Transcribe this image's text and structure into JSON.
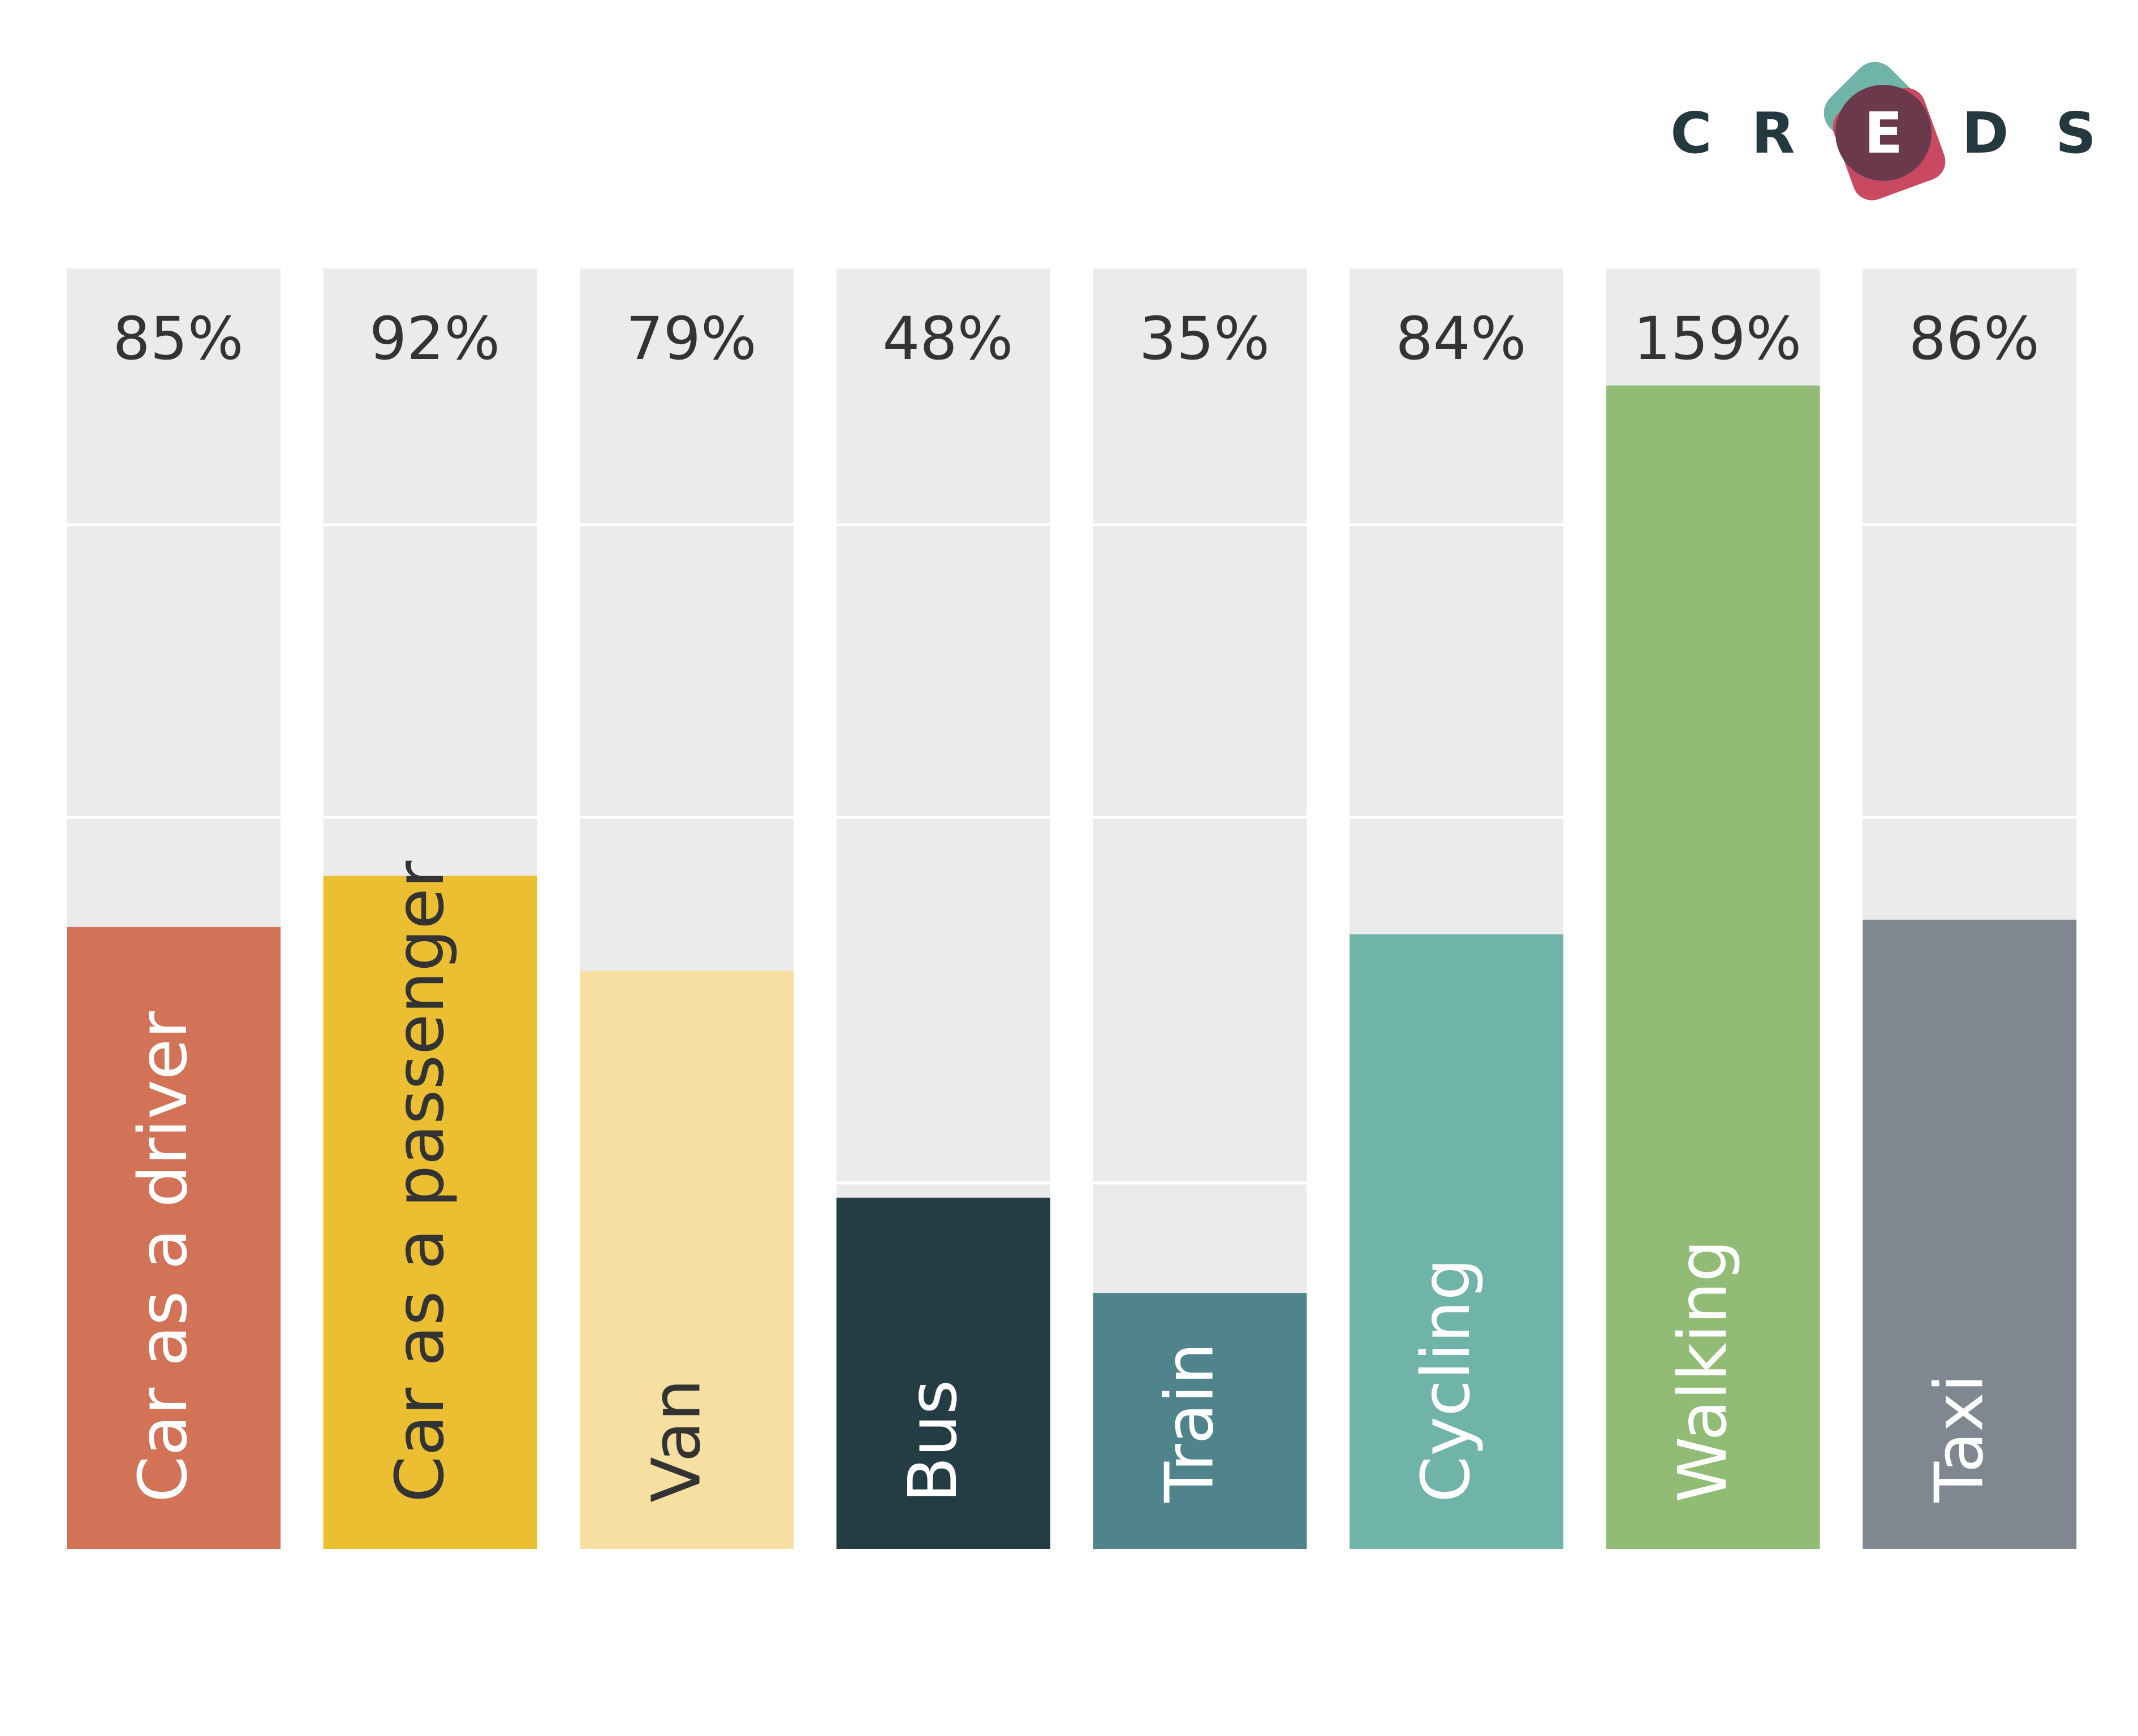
{
  "logo": {
    "letters": [
      "C",
      "R",
      "E",
      "D",
      "S"
    ],
    "colors": {
      "text": "#24383f",
      "teal": "#6fb3a9",
      "rose": "#c94a60",
      "overlap": "#6a3a4c"
    }
  },
  "chart_data": {
    "type": "bar",
    "title": "",
    "xlabel": "",
    "ylabel": "",
    "ylim": [
      0,
      175
    ],
    "grid": true,
    "legend": "none",
    "categories": [
      "Car as a driver",
      "Car as a passenger",
      "Van",
      "Bus",
      "Train",
      "Cycling",
      "Walking",
      "Taxi"
    ],
    "values": [
      85,
      92,
      79,
      48,
      35,
      84,
      159,
      86
    ],
    "value_labels": [
      "85%",
      "92%",
      "79%",
      "48%",
      "35%",
      "84%",
      "159%",
      "86%"
    ],
    "colors": [
      "#d27256",
      "#ecbf33",
      "#f6dfa1",
      "#243c43",
      "#4f848d",
      "#6fb3a9",
      "#92bc75",
      "#7f8890"
    ],
    "label_colors": [
      "#ffffff",
      "#333333",
      "#333333",
      "#ffffff",
      "#ffffff",
      "#ffffff",
      "#ffffff",
      "#ffffff"
    ],
    "background_color": "#ebebeb"
  }
}
